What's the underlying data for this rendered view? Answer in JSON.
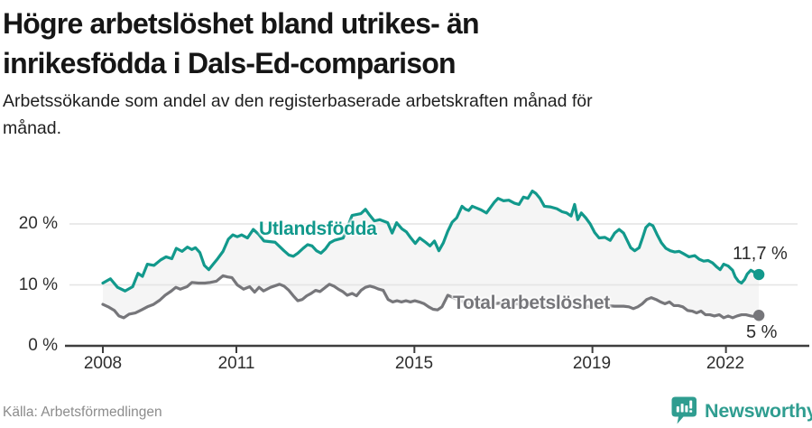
{
  "header": {
    "title_line1": "Högre arbetslöshet bland utrikes- än",
    "title_line2": "inrikesfödda i Dals-Ed-comparison",
    "subtitle_line1": "Arbetssökande som andel av den registerbaserade arbetskraften månad för",
    "subtitle_line2": "månad."
  },
  "footer": {
    "source": "Källa: Arbetsförmedlingen",
    "brand": "Newsworthy",
    "brand_color": "#2f9d90"
  },
  "chart_data": {
    "type": "line",
    "title": "Högre arbetslöshet bland utrikes- än inrikesfödda i Dals-Ed-comparison",
    "subtitle": "Arbetssökande som andel av den registerbaserade arbetskraften månad för månad.",
    "xlabel": "",
    "ylabel": "",
    "x_range": [
      2008.0,
      2022.74
    ],
    "ylim": [
      0,
      27
    ],
    "grid": true,
    "gridline_color": "#e4e4e4",
    "axis_color": "#3d3d3d",
    "fill_between_color": "#f5f5f5",
    "x_ticks": [
      2008,
      2011,
      2015,
      2019,
      2022
    ],
    "y_ticks": [
      {
        "value": 0,
        "label": "0 %"
      },
      {
        "value": 10,
        "label": "10 %"
      },
      {
        "value": 20,
        "label": "20 %"
      }
    ],
    "series": [
      {
        "name": "Utlandsfödda",
        "color": "#12998c",
        "end_label": "11,7 %",
        "end_value": 11.7,
        "points": [
          [
            2008.0,
            10.3
          ],
          [
            2008.17,
            11.0
          ],
          [
            2008.33,
            9.6
          ],
          [
            2008.5,
            9.0
          ],
          [
            2008.67,
            9.7
          ],
          [
            2008.79,
            11.9
          ],
          [
            2008.89,
            11.4
          ],
          [
            2009.0,
            13.4
          ],
          [
            2009.15,
            13.2
          ],
          [
            2009.3,
            14.1
          ],
          [
            2009.42,
            14.6
          ],
          [
            2009.55,
            14.3
          ],
          [
            2009.65,
            16.0
          ],
          [
            2009.78,
            15.5
          ],
          [
            2009.9,
            16.2
          ],
          [
            2010.0,
            15.8
          ],
          [
            2010.08,
            16.1
          ],
          [
            2010.18,
            15.3
          ],
          [
            2010.28,
            13.2
          ],
          [
            2010.38,
            12.5
          ],
          [
            2010.48,
            13.4
          ],
          [
            2010.58,
            14.3
          ],
          [
            2010.7,
            15.5
          ],
          [
            2010.82,
            17.5
          ],
          [
            2010.92,
            18.2
          ],
          [
            2011.02,
            17.9
          ],
          [
            2011.12,
            18.2
          ],
          [
            2011.25,
            17.7
          ],
          [
            2011.38,
            19.1
          ],
          [
            2011.5,
            18.3
          ],
          [
            2011.62,
            17.2
          ],
          [
            2011.87,
            17.0
          ],
          [
            2012.07,
            15.6
          ],
          [
            2012.18,
            14.9
          ],
          [
            2012.28,
            14.7
          ],
          [
            2012.38,
            15.2
          ],
          [
            2012.5,
            16.0
          ],
          [
            2012.6,
            16.6
          ],
          [
            2012.7,
            16.4
          ],
          [
            2012.8,
            15.6
          ],
          [
            2012.9,
            15.2
          ],
          [
            2013.0,
            15.9
          ],
          [
            2013.1,
            16.9
          ],
          [
            2013.2,
            17.3
          ],
          [
            2013.4,
            17.7
          ],
          [
            2013.6,
            21.4
          ],
          [
            2013.8,
            21.7
          ],
          [
            2013.9,
            22.4
          ],
          [
            2014.0,
            21.4
          ],
          [
            2014.1,
            20.5
          ],
          [
            2014.22,
            20.7
          ],
          [
            2014.4,
            20.2
          ],
          [
            2014.5,
            18.5
          ],
          [
            2014.6,
            20.2
          ],
          [
            2014.72,
            19.2
          ],
          [
            2014.82,
            18.7
          ],
          [
            2014.92,
            17.7
          ],
          [
            2015.02,
            16.8
          ],
          [
            2015.12,
            17.7
          ],
          [
            2015.25,
            17.0
          ],
          [
            2015.35,
            16.4
          ],
          [
            2015.45,
            17.2
          ],
          [
            2015.55,
            15.6
          ],
          [
            2015.65,
            16.9
          ],
          [
            2015.75,
            18.8
          ],
          [
            2015.85,
            20.3
          ],
          [
            2015.95,
            21.0
          ],
          [
            2016.07,
            22.9
          ],
          [
            2016.15,
            22.4
          ],
          [
            2016.22,
            22.2
          ],
          [
            2016.3,
            22.9
          ],
          [
            2016.4,
            22.6
          ],
          [
            2016.5,
            22.3
          ],
          [
            2016.62,
            21.8
          ],
          [
            2016.72,
            22.8
          ],
          [
            2016.8,
            23.6
          ],
          [
            2016.88,
            24.2
          ],
          [
            2017.0,
            23.8
          ],
          [
            2017.12,
            23.9
          ],
          [
            2017.25,
            23.4
          ],
          [
            2017.35,
            23.2
          ],
          [
            2017.45,
            24.4
          ],
          [
            2017.55,
            24.2
          ],
          [
            2017.65,
            25.4
          ],
          [
            2017.73,
            25.0
          ],
          [
            2017.82,
            24.2
          ],
          [
            2017.92,
            22.9
          ],
          [
            2018.05,
            22.8
          ],
          [
            2018.2,
            22.5
          ],
          [
            2018.32,
            22.0
          ],
          [
            2018.42,
            21.8
          ],
          [
            2018.52,
            21.3
          ],
          [
            2018.6,
            23.2
          ],
          [
            2018.67,
            20.7
          ],
          [
            2018.75,
            21.8
          ],
          [
            2018.85,
            21.0
          ],
          [
            2018.95,
            20.0
          ],
          [
            2019.05,
            18.6
          ],
          [
            2019.15,
            17.7
          ],
          [
            2019.28,
            17.8
          ],
          [
            2019.4,
            17.3
          ],
          [
            2019.5,
            18.5
          ],
          [
            2019.6,
            19.1
          ],
          [
            2019.7,
            18.5
          ],
          [
            2019.78,
            17.3
          ],
          [
            2019.86,
            16.1
          ],
          [
            2019.95,
            15.6
          ],
          [
            2020.05,
            16.1
          ],
          [
            2020.13,
            17.8
          ],
          [
            2020.2,
            19.4
          ],
          [
            2020.28,
            20.0
          ],
          [
            2020.36,
            19.7
          ],
          [
            2020.45,
            18.3
          ],
          [
            2020.55,
            16.9
          ],
          [
            2020.65,
            16.0
          ],
          [
            2020.75,
            15.6
          ],
          [
            2020.85,
            15.4
          ],
          [
            2020.95,
            15.5
          ],
          [
            2021.05,
            15.1
          ],
          [
            2021.17,
            14.6
          ],
          [
            2021.3,
            14.8
          ],
          [
            2021.4,
            14.2
          ],
          [
            2021.5,
            13.9
          ],
          [
            2021.6,
            14.0
          ],
          [
            2021.7,
            13.6
          ],
          [
            2021.8,
            12.9
          ],
          [
            2021.87,
            12.5
          ],
          [
            2021.95,
            13.4
          ],
          [
            2022.05,
            13.1
          ],
          [
            2022.15,
            12.4
          ],
          [
            2022.21,
            11.3
          ],
          [
            2022.28,
            10.6
          ],
          [
            2022.35,
            10.3
          ],
          [
            2022.42,
            10.9
          ],
          [
            2022.48,
            11.8
          ],
          [
            2022.56,
            12.4
          ],
          [
            2022.63,
            12.1
          ],
          [
            2022.68,
            11.8
          ],
          [
            2022.74,
            11.7
          ]
        ]
      },
      {
        "name": "Total arbetslöshet",
        "color": "#76767a",
        "end_label": "5 %",
        "end_value": 5.0,
        "points": [
          [
            2008.0,
            6.8
          ],
          [
            2008.12,
            6.4
          ],
          [
            2008.26,
            5.8
          ],
          [
            2008.36,
            4.9
          ],
          [
            2008.47,
            4.6
          ],
          [
            2008.59,
            5.2
          ],
          [
            2008.73,
            5.4
          ],
          [
            2008.87,
            5.9
          ],
          [
            2009.0,
            6.4
          ],
          [
            2009.14,
            6.8
          ],
          [
            2009.28,
            7.5
          ],
          [
            2009.4,
            8.3
          ],
          [
            2009.54,
            9.0
          ],
          [
            2009.64,
            9.6
          ],
          [
            2009.74,
            9.3
          ],
          [
            2009.89,
            9.7
          ],
          [
            2010.0,
            10.4
          ],
          [
            2010.15,
            10.3
          ],
          [
            2010.29,
            10.3
          ],
          [
            2010.41,
            10.4
          ],
          [
            2010.55,
            10.6
          ],
          [
            2010.7,
            11.5
          ],
          [
            2010.8,
            11.3
          ],
          [
            2010.9,
            11.2
          ],
          [
            2011.02,
            10.0
          ],
          [
            2011.16,
            9.3
          ],
          [
            2011.3,
            9.7
          ],
          [
            2011.41,
            8.8
          ],
          [
            2011.51,
            9.6
          ],
          [
            2011.61,
            9.0
          ],
          [
            2011.77,
            9.6
          ],
          [
            2011.97,
            10.1
          ],
          [
            2012.07,
            9.8
          ],
          [
            2012.18,
            9.1
          ],
          [
            2012.28,
            8.2
          ],
          [
            2012.38,
            7.4
          ],
          [
            2012.48,
            7.6
          ],
          [
            2012.58,
            8.2
          ],
          [
            2012.68,
            8.6
          ],
          [
            2012.78,
            9.1
          ],
          [
            2012.88,
            8.9
          ],
          [
            2013.0,
            9.6
          ],
          [
            2013.09,
            10.1
          ],
          [
            2013.19,
            9.8
          ],
          [
            2013.29,
            9.3
          ],
          [
            2013.39,
            8.9
          ],
          [
            2013.49,
            8.3
          ],
          [
            2013.6,
            8.6
          ],
          [
            2013.7,
            8.2
          ],
          [
            2013.8,
            9.1
          ],
          [
            2013.9,
            9.6
          ],
          [
            2014.0,
            9.8
          ],
          [
            2014.1,
            9.6
          ],
          [
            2014.2,
            9.3
          ],
          [
            2014.3,
            9.1
          ],
          [
            2014.41,
            7.6
          ],
          [
            2014.51,
            7.2
          ],
          [
            2014.61,
            7.4
          ],
          [
            2014.71,
            7.2
          ],
          [
            2014.81,
            7.4
          ],
          [
            2014.91,
            7.2
          ],
          [
            2015.01,
            7.4
          ],
          [
            2015.11,
            7.2
          ],
          [
            2015.22,
            6.9
          ],
          [
            2015.32,
            6.4
          ],
          [
            2015.42,
            6.0
          ],
          [
            2015.52,
            5.9
          ],
          [
            2015.62,
            6.4
          ],
          [
            2015.75,
            8.3
          ],
          [
            2015.9,
            7.8
          ],
          [
            2016.1,
            7.2
          ],
          [
            2016.3,
            6.9
          ],
          [
            2016.5,
            7.1
          ],
          [
            2016.7,
            6.8
          ],
          [
            2016.9,
            7.0
          ],
          [
            2017.1,
            6.7
          ],
          [
            2017.3,
            6.9
          ],
          [
            2017.5,
            6.6
          ],
          [
            2017.7,
            6.8
          ],
          [
            2017.9,
            6.5
          ],
          [
            2018.1,
            6.7
          ],
          [
            2018.3,
            6.4
          ],
          [
            2018.5,
            6.6
          ],
          [
            2018.7,
            6.3
          ],
          [
            2018.9,
            6.5
          ],
          [
            2019.1,
            6.4
          ],
          [
            2019.3,
            6.6
          ],
          [
            2019.5,
            6.5
          ],
          [
            2019.7,
            6.5
          ],
          [
            2019.82,
            6.4
          ],
          [
            2019.92,
            6.1
          ],
          [
            2020.02,
            6.4
          ],
          [
            2020.12,
            6.9
          ],
          [
            2020.22,
            7.6
          ],
          [
            2020.32,
            7.9
          ],
          [
            2020.43,
            7.6
          ],
          [
            2020.53,
            7.2
          ],
          [
            2020.63,
            6.9
          ],
          [
            2020.73,
            7.2
          ],
          [
            2020.83,
            6.6
          ],
          [
            2020.93,
            6.6
          ],
          [
            2021.03,
            6.4
          ],
          [
            2021.14,
            5.8
          ],
          [
            2021.24,
            5.7
          ],
          [
            2021.34,
            5.4
          ],
          [
            2021.44,
            5.7
          ],
          [
            2021.54,
            5.1
          ],
          [
            2021.64,
            5.1
          ],
          [
            2021.74,
            4.9
          ],
          [
            2021.85,
            5.1
          ],
          [
            2021.95,
            4.6
          ],
          [
            2022.05,
            4.9
          ],
          [
            2022.15,
            4.6
          ],
          [
            2022.25,
            4.9
          ],
          [
            2022.35,
            5.1
          ],
          [
            2022.45,
            5.1
          ],
          [
            2022.56,
            4.9
          ],
          [
            2022.65,
            4.8
          ],
          [
            2022.74,
            5.0
          ]
        ]
      }
    ]
  }
}
